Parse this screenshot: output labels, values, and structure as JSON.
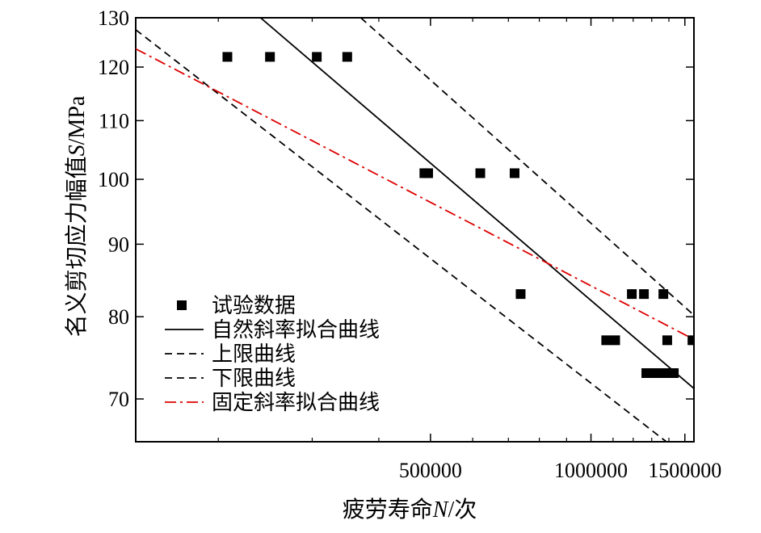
{
  "chart_data": {
    "type": "scatter",
    "title": "",
    "x_scale": "log",
    "y_scale": "log",
    "xlim": [
      140000,
      1560000
    ],
    "ylim": [
      65.3,
      130
    ],
    "x_ticks": [
      500000,
      1000000,
      1500000
    ],
    "x_tick_labels": [
      "500000",
      "1000000",
      "1500000"
    ],
    "x_minor_ticks": [
      200000,
      300000,
      400000,
      600000,
      700000,
      800000,
      900000,
      1100000,
      1200000,
      1300000,
      1400000
    ],
    "y_ticks": [
      70,
      80,
      90,
      100,
      110,
      120,
      130
    ],
    "y_tick_labels": [
      "70",
      "80",
      "90",
      "100",
      "110",
      "120",
      "130"
    ],
    "xlabel": {
      "prefix": "疲劳寿命",
      "var": "N",
      "suffix": "/次"
    },
    "ylabel": {
      "prefix": "名义剪切应力幅值",
      "var": "S",
      "suffix": "/MPa"
    },
    "series": [
      {
        "name": "试验数据",
        "kind": "scatter",
        "marker": "square",
        "color": "#000000",
        "points": [
          [
            208000,
            122
          ],
          [
            250000,
            122
          ],
          [
            306000,
            122
          ],
          [
            349000,
            122
          ],
          [
            487000,
            101
          ],
          [
            495000,
            101
          ],
          [
            620000,
            101
          ],
          [
            719000,
            101
          ],
          [
            738000,
            83
          ],
          [
            1068000,
            77
          ],
          [
            1110000,
            77
          ],
          [
            1193000,
            83
          ],
          [
            1257000,
            83
          ],
          [
            1367000,
            83
          ],
          [
            1270000,
            73
          ],
          [
            1310000,
            73
          ],
          [
            1350000,
            73
          ],
          [
            1390000,
            73
          ],
          [
            1430000,
            73
          ],
          [
            1390000,
            77
          ],
          [
            1550000,
            77
          ]
        ]
      },
      {
        "name": "自然斜率拟合曲线",
        "kind": "line",
        "style": "solid",
        "color": "#000000",
        "points": [
          [
            240000,
            130
          ],
          [
            1560000,
            71.2
          ]
        ]
      },
      {
        "name": "上限曲线",
        "kind": "line",
        "style": "dashed",
        "color": "#000000",
        "points": [
          [
            370000,
            130
          ],
          [
            1560000,
            80.2
          ]
        ]
      },
      {
        "name": "下限曲线",
        "kind": "line",
        "style": "dashed",
        "color": "#000000",
        "points": [
          [
            140000,
            127.5
          ],
          [
            1385000,
            65.3
          ]
        ]
      },
      {
        "name": "固定斜率拟合曲线",
        "kind": "line",
        "style": "dashdot",
        "color": "#dd0000",
        "points": [
          [
            140000,
            123.6
          ],
          [
            1560000,
            77.1
          ]
        ]
      }
    ],
    "legend": {
      "position": "bottom-left",
      "entries": [
        "试验数据",
        "自然斜率拟合曲线",
        "上限曲线",
        "下限曲线",
        "固定斜率拟合曲线"
      ]
    }
  }
}
